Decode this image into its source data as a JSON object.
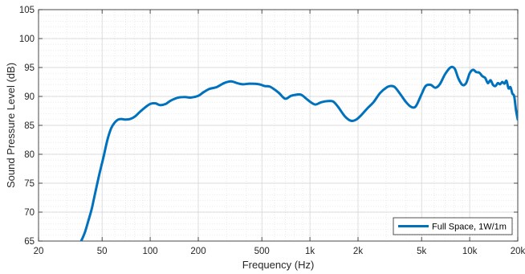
{
  "chart_data": {
    "type": "line",
    "xscale": "log",
    "xlabel": "Frequency (Hz)",
    "ylabel": "Sound Pressure Level (dB)",
    "xlim": [
      20,
      20000
    ],
    "ylim": [
      65,
      105
    ],
    "grid": true,
    "legend_position": "bottom-right",
    "x_ticks": [
      {
        "value": 20,
        "label": "20"
      },
      {
        "value": 50,
        "label": "50"
      },
      {
        "value": 100,
        "label": "100"
      },
      {
        "value": 200,
        "label": "200"
      },
      {
        "value": 500,
        "label": "500"
      },
      {
        "value": 1000,
        "label": "1k"
      },
      {
        "value": 2000,
        "label": "2k"
      },
      {
        "value": 5000,
        "label": "5k"
      },
      {
        "value": 10000,
        "label": "10k"
      },
      {
        "value": 20000,
        "label": "20k"
      }
    ],
    "y_ticks": [
      {
        "value": 65,
        "label": "65"
      },
      {
        "value": 70,
        "label": "70"
      },
      {
        "value": 75,
        "label": "75"
      },
      {
        "value": 80,
        "label": "80"
      },
      {
        "value": 85,
        "label": "85"
      },
      {
        "value": 90,
        "label": "90"
      },
      {
        "value": 95,
        "label": "95"
      },
      {
        "value": 100,
        "label": "100"
      },
      {
        "value": 105,
        "label": "105"
      }
    ],
    "series": [
      {
        "name": "Full Space, 1W/1m",
        "color": "#0072BD",
        "x": [
          37,
          39,
          41,
          43,
          45,
          48,
          51,
          54,
          57,
          60,
          63,
          66,
          70,
          75,
          80,
          86,
          92,
          100,
          108,
          115,
          125,
          135,
          150,
          165,
          180,
          200,
          215,
          235,
          260,
          290,
          320,
          350,
          380,
          420,
          480,
          520,
          560,
          600,
          640,
          700,
          760,
          820,
          880,
          950,
          1000,
          1080,
          1180,
          1300,
          1400,
          1500,
          1650,
          1800,
          1950,
          2100,
          2300,
          2500,
          2750,
          3000,
          3200,
          3400,
          3700,
          4000,
          4300,
          4600,
          5000,
          5300,
          5700,
          6100,
          6500,
          7000,
          7500,
          7800,
          8100,
          8500,
          9000,
          9500,
          10000,
          10500,
          11000,
          11500,
          12000,
          12500,
          13000,
          13500,
          14000,
          14500,
          15000,
          15500,
          16000,
          16500,
          17000,
          17500,
          18000,
          18500,
          19000,
          19500,
          20000
        ],
        "values": [
          65.0,
          66.5,
          68.5,
          70.5,
          73.0,
          76.5,
          79.5,
          82.5,
          84.5,
          85.5,
          86.0,
          86.1,
          86.0,
          86.1,
          86.5,
          87.3,
          88.0,
          88.7,
          88.8,
          88.5,
          88.7,
          89.3,
          89.8,
          89.9,
          89.8,
          90.1,
          90.7,
          91.3,
          91.6,
          92.3,
          92.6,
          92.3,
          92.1,
          92.2,
          92.1,
          91.8,
          91.7,
          91.2,
          90.6,
          89.6,
          90.1,
          90.3,
          90.3,
          89.6,
          89.1,
          88.6,
          89.0,
          89.2,
          89.1,
          88.2,
          86.6,
          85.8,
          86.0,
          86.8,
          88.0,
          89.0,
          90.6,
          91.5,
          91.8,
          91.6,
          90.3,
          89.0,
          88.2,
          88.3,
          90.4,
          91.8,
          92.0,
          91.5,
          92.1,
          93.8,
          94.9,
          95.1,
          94.7,
          93.1,
          92.0,
          92.3,
          94.0,
          94.6,
          94.2,
          94.1,
          93.5,
          93.2,
          92.3,
          92.8,
          92.0,
          91.8,
          92.3,
          92.1,
          92.5,
          92.2,
          92.7,
          91.4,
          91.6,
          90.5,
          90.0,
          87.6,
          86.0
        ]
      }
    ]
  }
}
